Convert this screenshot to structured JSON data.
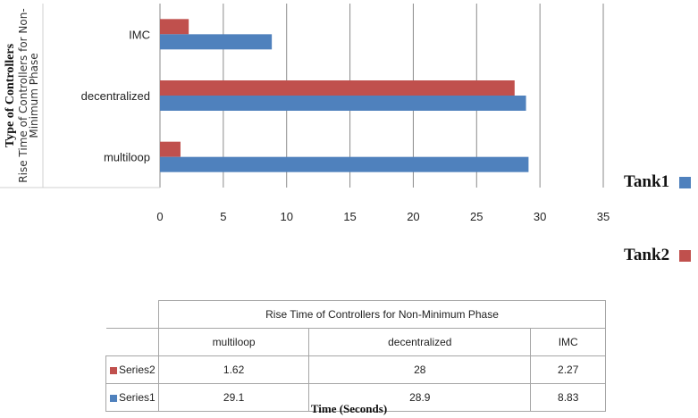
{
  "chart_data": {
    "type": "bar",
    "orientation": "horizontal",
    "categories": [
      "multiloop",
      "decentralized",
      "IMC"
    ],
    "series": [
      {
        "name": "Series1",
        "values": [
          29.1,
          28.9,
          8.83
        ],
        "color": "#4f81bd"
      },
      {
        "name": "Series2",
        "values": [
          1.62,
          28,
          2.27
        ],
        "color": "#c0504d"
      }
    ],
    "xlim": [
      0,
      35
    ],
    "xticks": [
      0,
      5,
      10,
      15,
      20,
      25,
      30,
      35
    ],
    "xticks_labels": [
      "0",
      "5",
      "10",
      "15",
      "20",
      "25",
      "30",
      "35"
    ],
    "grid": "vertical",
    "ylabel_title": "Type of Controllers",
    "ylabel_sub": "Rise Time  of Controllers for Non-Minimum Phase",
    "xlabel": "Time (Seconds)",
    "legend": [
      {
        "label": "Tank1",
        "color": "#4f81bd"
      },
      {
        "label": "Tank2",
        "color": "#c0504d"
      }
    ],
    "legend_position": "right",
    "table": {
      "title": "Rise Time  of Controllers for Non-Minimum Phase",
      "columns": [
        "multiloop",
        "decentralized",
        "IMC"
      ],
      "rows": [
        {
          "label": "Series2",
          "color": "#c0504d",
          "values": [
            "1.62",
            "28",
            "2.27"
          ]
        },
        {
          "label": "Series1",
          "color": "#4f81bd",
          "values": [
            "29.1",
            "28.9",
            "8.83"
          ]
        }
      ]
    }
  }
}
